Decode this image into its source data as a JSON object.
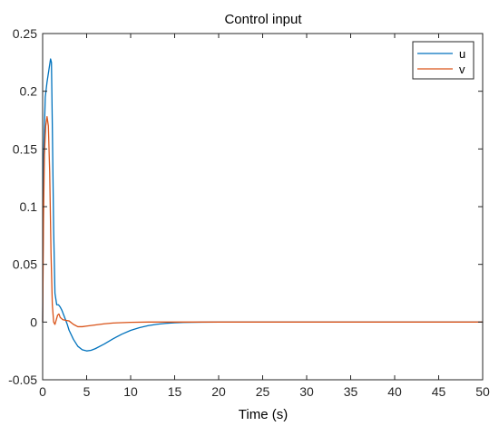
{
  "chart_data": {
    "type": "line",
    "title": "Control input",
    "xlabel": "Time (s)",
    "ylabel": "",
    "xlim": [
      0,
      50
    ],
    "ylim": [
      -0.05,
      0.25
    ],
    "x_ticks": [
      0,
      5,
      10,
      15,
      20,
      25,
      30,
      35,
      40,
      45,
      50
    ],
    "y_ticks": [
      -0.05,
      0,
      0.05,
      0.1,
      0.15,
      0.2,
      0.25
    ],
    "y_tick_labels": [
      "-0.05",
      "0",
      "0.05",
      "0.1",
      "0.15",
      "0.2",
      "0.25"
    ],
    "grid": false,
    "legend_position": "top-right",
    "series": [
      {
        "name": "u",
        "color": "#0072BD",
        "x": [
          0,
          0.1,
          0.3,
          0.5,
          0.7,
          0.9,
          1.0,
          1.1,
          1.25,
          1.4,
          1.6,
          1.8,
          2.0,
          2.2,
          2.5,
          2.8,
          3.0,
          3.5,
          4.0,
          4.5,
          5.0,
          5.5,
          6.0,
          7.0,
          8.0,
          9.0,
          10.0,
          11.0,
          12.0,
          13.0,
          14.0,
          15.0,
          16.0,
          17.0,
          18.0,
          20.0,
          22.0,
          25.0,
          30.0,
          35.0,
          40.0,
          45.0,
          50.0
        ],
        "y": [
          0,
          0.14,
          0.195,
          0.208,
          0.218,
          0.228,
          0.225,
          0.17,
          0.08,
          0.025,
          0.015,
          0.015,
          0.013,
          0.01,
          0.004,
          -0.002,
          -0.007,
          -0.015,
          -0.021,
          -0.024,
          -0.025,
          -0.0245,
          -0.023,
          -0.019,
          -0.0145,
          -0.0105,
          -0.0072,
          -0.0048,
          -0.0031,
          -0.0019,
          -0.0011,
          -0.0006,
          -0.0003,
          -0.0002,
          -0.0001,
          0,
          0,
          0,
          0,
          0,
          0,
          0,
          0
        ]
      },
      {
        "name": "v",
        "color": "#D95319",
        "x": [
          0,
          0.1,
          0.2,
          0.35,
          0.5,
          0.65,
          0.8,
          0.95,
          1.1,
          1.25,
          1.4,
          1.55,
          1.7,
          1.85,
          2.0,
          2.3,
          2.6,
          3.0,
          3.5,
          4.0,
          4.5,
          5.0,
          6.0,
          7.0,
          8.0,
          10.0,
          12.0,
          15.0,
          20.0,
          30.0,
          40.0,
          50.0
        ],
        "y": [
          0,
          0.09,
          0.145,
          0.17,
          0.178,
          0.17,
          0.13,
          0.06,
          0.015,
          0.0,
          -0.002,
          0.002,
          0.006,
          0.007,
          0.004,
          0.002,
          0.0015,
          0.001,
          -0.002,
          -0.004,
          -0.004,
          -0.0035,
          -0.0025,
          -0.0015,
          -0.0008,
          -0.0002,
          0,
          0,
          0,
          0,
          0,
          0
        ]
      }
    ]
  }
}
